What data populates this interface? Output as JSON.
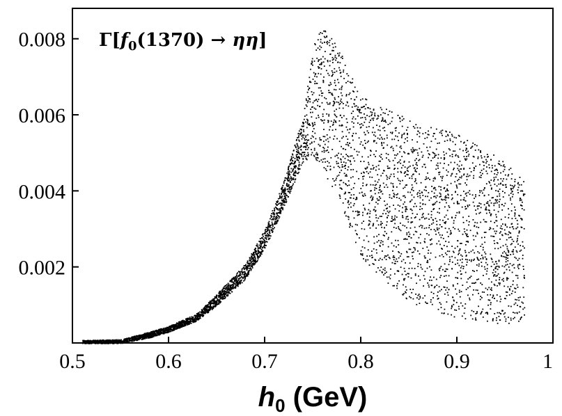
{
  "chart_data": {
    "type": "scatter",
    "title": "",
    "annotation": {
      "prefix": "Γ[",
      "f_symbol": "f",
      "f_subscript": "0",
      "middle": "(1370) → ",
      "eta_eta": "ηη",
      "suffix": "]"
    },
    "xlabel": {
      "symbol": "h",
      "subscript": "0",
      "unit": " (GeV)"
    },
    "ylabel": "",
    "xlim": [
      0.5,
      1.0
    ],
    "ylim": [
      0.0,
      0.0088
    ],
    "x_ticks": [
      0.5,
      0.6,
      0.7,
      0.8,
      0.9,
      1.0
    ],
    "x_tick_labels": [
      "0.5",
      "0.6",
      "0.7",
      "0.8",
      "0.9",
      "1"
    ],
    "y_ticks": [
      0.002,
      0.004,
      0.006,
      0.008
    ],
    "y_tick_labels": [
      "0.002",
      "0.004",
      "0.006",
      "0.008"
    ],
    "point_color": "#000000",
    "series": [
      {
        "name": "f0(1370) → ηη width vs h0",
        "envelope": [
          {
            "x": 0.51,
            "y_min": 0.0,
            "y_max": 8e-05
          },
          {
            "x": 0.55,
            "y_min": 0.0,
            "y_max": 0.0001
          },
          {
            "x": 0.58,
            "y_min": 0.00015,
            "y_max": 0.0003
          },
          {
            "x": 0.6,
            "y_min": 0.0003,
            "y_max": 0.00045
          },
          {
            "x": 0.63,
            "y_min": 0.0006,
            "y_max": 0.0008
          },
          {
            "x": 0.65,
            "y_min": 0.001,
            "y_max": 0.0013
          },
          {
            "x": 0.68,
            "y_min": 0.0017,
            "y_max": 0.0021
          },
          {
            "x": 0.7,
            "y_min": 0.0025,
            "y_max": 0.003
          },
          {
            "x": 0.72,
            "y_min": 0.0036,
            "y_max": 0.0043
          },
          {
            "x": 0.74,
            "y_min": 0.0048,
            "y_max": 0.006
          },
          {
            "x": 0.75,
            "y_min": 0.0049,
            "y_max": 0.0078
          },
          {
            "x": 0.76,
            "y_min": 0.0045,
            "y_max": 0.0084
          },
          {
            "x": 0.78,
            "y_min": 0.0036,
            "y_max": 0.0076
          },
          {
            "x": 0.8,
            "y_min": 0.0022,
            "y_max": 0.0065
          },
          {
            "x": 0.85,
            "y_min": 0.0011,
            "y_max": 0.0059
          },
          {
            "x": 0.9,
            "y_min": 0.0006,
            "y_max": 0.0055
          },
          {
            "x": 0.95,
            "y_min": 0.0005,
            "y_max": 0.0048
          },
          {
            "x": 0.97,
            "y_min": 0.0006,
            "y_max": 0.0043
          }
        ]
      }
    ]
  }
}
